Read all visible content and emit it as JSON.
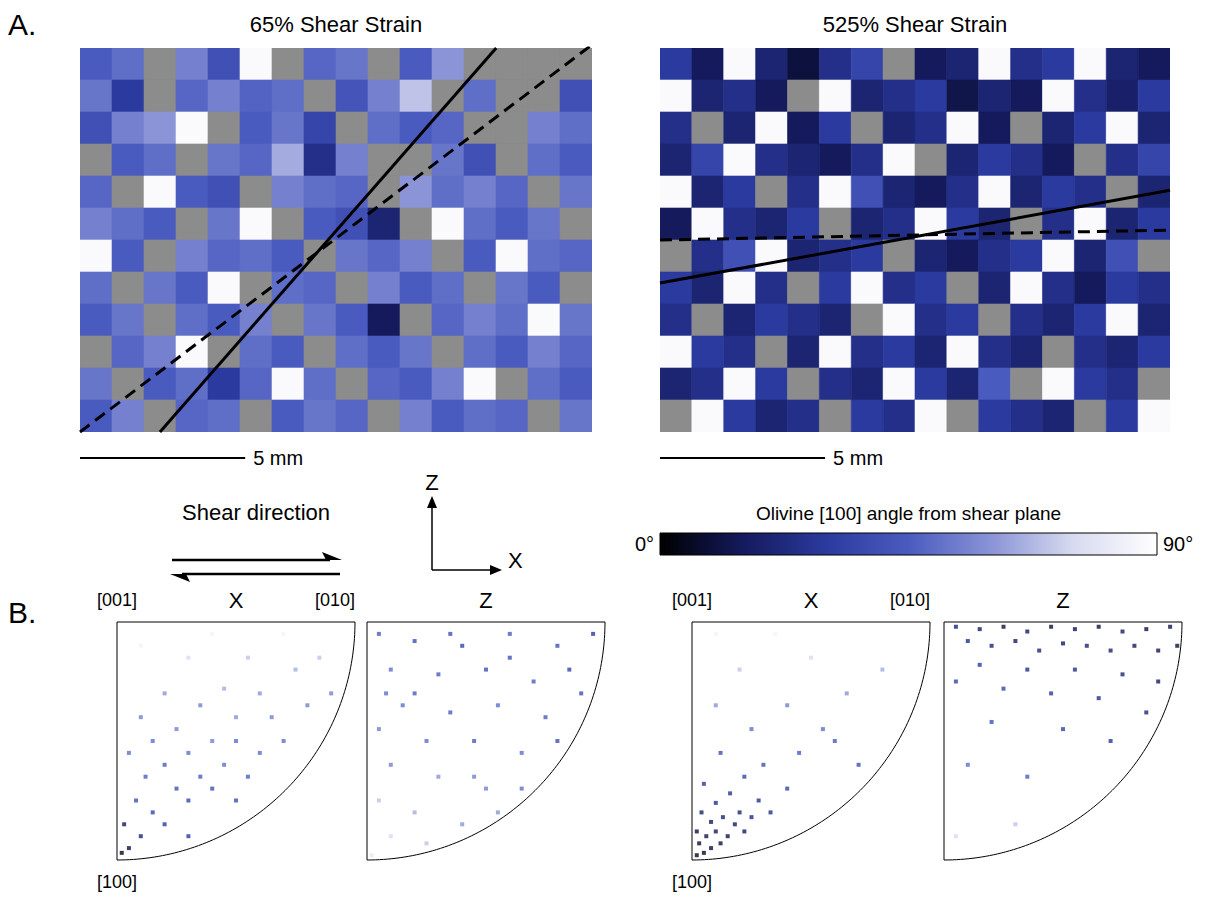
{
  "figure": {
    "panel_letters": [
      "A.",
      "B."
    ],
    "shear_direction": {
      "label": "Shear direction"
    },
    "axes_icon": {
      "labels": [
        "Z",
        "X"
      ]
    },
    "colorbar": {
      "title": "Olivine [100] angle from shear plane",
      "range": [
        0,
        90
      ],
      "ticks": [
        {
          "value": 0,
          "label": "0°"
        },
        {
          "value": 90,
          "label": "90°"
        }
      ],
      "colors": [
        "#000000",
        "#141a5c",
        "#2b3a9e",
        "#4a5bc0",
        "#8a94d6",
        "#d8dbf0",
        "#ffffff"
      ]
    }
  },
  "chart_data": [
    {
      "type": "map",
      "title": "65% Shear Strain",
      "xlim": [
        0,
        15.5
      ],
      "ylim": [
        0,
        11.6
      ],
      "tick_labels": false,
      "scale_bar": {
        "length": 5,
        "label": "5 mm"
      },
      "cells": [
        [
          45,
          50,
          null,
          55,
          40,
          88,
          null,
          48,
          52,
          null,
          45,
          60,
          null,
          null,
          null,
          null
        ],
        [
          52,
          30,
          null,
          48,
          55,
          47,
          50,
          null,
          42,
          55,
          70,
          null,
          50,
          null,
          null,
          40
        ],
        [
          40,
          55,
          60,
          88,
          null,
          45,
          52,
          35,
          null,
          50,
          45,
          48,
          null,
          null,
          55,
          50
        ],
        [
          null,
          45,
          50,
          null,
          52,
          48,
          65,
          25,
          55,
          null,
          null,
          52,
          40,
          null,
          50,
          45
        ],
        [
          48,
          null,
          88,
          45,
          40,
          null,
          55,
          50,
          48,
          null,
          60,
          50,
          55,
          48,
          null,
          52
        ],
        [
          55,
          50,
          45,
          null,
          52,
          88,
          null,
          45,
          40,
          20,
          null,
          88,
          50,
          45,
          52,
          null
        ],
        [
          88,
          45,
          null,
          55,
          48,
          50,
          45,
          null,
          52,
          48,
          55,
          null,
          45,
          88,
          50,
          48
        ],
        [
          50,
          null,
          52,
          45,
          88,
          null,
          50,
          48,
          null,
          55,
          45,
          50,
          null,
          52,
          45,
          null
        ],
        [
          45,
          52,
          null,
          50,
          45,
          55,
          null,
          52,
          45,
          15,
          null,
          48,
          55,
          50,
          88,
          52
        ],
        [
          null,
          48,
          55,
          88,
          null,
          50,
          45,
          null,
          50,
          45,
          52,
          null,
          50,
          45,
          55,
          48
        ],
        [
          52,
          null,
          45,
          50,
          30,
          48,
          88,
          50,
          null,
          48,
          45,
          55,
          88,
          null,
          50,
          45
        ],
        [
          45,
          55,
          null,
          48,
          50,
          null,
          45,
          52,
          48,
          null,
          55,
          45,
          50,
          48,
          null,
          52
        ]
      ],
      "lines": [
        {
          "line_style": "solid",
          "x": [
            2.42,
            12.6
          ],
          "y": [
            0,
            11.6
          ]
        },
        {
          "line_style": "dashed",
          "x": [
            0,
            15.5
          ],
          "y": [
            0,
            11.7
          ]
        }
      ]
    },
    {
      "type": "map",
      "title": "525% Shear Strain",
      "xlim": [
        0,
        15.45
      ],
      "ylim": [
        0,
        11.6
      ],
      "tick_labels": false,
      "scale_bar": {
        "length": 5,
        "label": "5 mm"
      },
      "cells": [
        [
          30,
          15,
          88,
          20,
          10,
          25,
          35,
          null,
          15,
          20,
          88,
          25,
          30,
          88,
          20,
          15
        ],
        [
          88,
          20,
          25,
          15,
          null,
          88,
          20,
          25,
          30,
          12,
          20,
          15,
          88,
          25,
          18,
          30
        ],
        [
          25,
          null,
          20,
          88,
          15,
          30,
          null,
          20,
          25,
          88,
          15,
          null,
          20,
          30,
          88,
          20
        ],
        [
          20,
          35,
          88,
          25,
          20,
          15,
          25,
          88,
          null,
          20,
          30,
          25,
          15,
          null,
          25,
          35
        ],
        [
          88,
          20,
          30,
          null,
          25,
          88,
          40,
          20,
          15,
          25,
          88,
          20,
          30,
          25,
          null,
          20
        ],
        [
          15,
          88,
          25,
          20,
          30,
          null,
          20,
          25,
          88,
          30,
          20,
          null,
          25,
          88,
          20,
          30
        ],
        [
          null,
          25,
          40,
          88,
          20,
          25,
          30,
          null,
          20,
          15,
          25,
          30,
          88,
          20,
          40,
          null
        ],
        [
          30,
          20,
          88,
          25,
          null,
          30,
          88,
          25,
          30,
          null,
          20,
          88,
          25,
          15,
          30,
          25
        ],
        [
          25,
          null,
          20,
          30,
          25,
          20,
          null,
          88,
          25,
          30,
          null,
          25,
          20,
          30,
          88,
          20
        ],
        [
          88,
          30,
          25,
          null,
          20,
          88,
          25,
          30,
          20,
          88,
          25,
          20,
          null,
          25,
          20,
          30
        ],
        [
          20,
          25,
          88,
          30,
          null,
          25,
          20,
          88,
          30,
          20,
          45,
          null,
          88,
          30,
          25,
          null
        ],
        [
          null,
          88,
          30,
          20,
          25,
          null,
          30,
          25,
          88,
          null,
          30,
          25,
          20,
          null,
          30,
          88
        ]
      ],
      "lines": [
        {
          "line_style": "solid",
          "x": [
            0,
            15.45
          ],
          "y": [
            4.5,
            7.3
          ]
        },
        {
          "line_style": "dashed",
          "x": [
            0,
            15.45
          ],
          "y": [
            5.8,
            6.1
          ]
        }
      ]
    },
    {
      "type": "inverse_pole_figure",
      "title": "X",
      "corner_labels": [
        "[001]",
        "[010]",
        "[100]"
      ],
      "xlim": [
        0,
        1
      ],
      "ylim": [
        0,
        1
      ],
      "tick_labels": false,
      "marker": "square",
      "points": [
        [
          0.05,
          0.95,
          10
        ],
        [
          0.1,
          0.9,
          20
        ],
        [
          0.03,
          0.85,
          15
        ],
        [
          0.15,
          0.8,
          35
        ],
        [
          0.2,
          0.85,
          30
        ],
        [
          0.08,
          0.75,
          40
        ],
        [
          0.25,
          0.7,
          40
        ],
        [
          0.3,
          0.75,
          35
        ],
        [
          0.35,
          0.65,
          45
        ],
        [
          0.12,
          0.65,
          45
        ],
        [
          0.4,
          0.7,
          40
        ],
        [
          0.45,
          0.6,
          50
        ],
        [
          0.2,
          0.6,
          45
        ],
        [
          0.3,
          0.55,
          50
        ],
        [
          0.5,
          0.5,
          50
        ],
        [
          0.55,
          0.65,
          45
        ],
        [
          0.6,
          0.55,
          50
        ],
        [
          0.4,
          0.5,
          55
        ],
        [
          0.15,
          0.5,
          50
        ],
        [
          0.25,
          0.45,
          55
        ],
        [
          0.65,
          0.4,
          55
        ],
        [
          0.7,
          0.5,
          50
        ],
        [
          0.5,
          0.4,
          60
        ],
        [
          0.35,
          0.35,
          55
        ],
        [
          0.1,
          0.4,
          55
        ],
        [
          0.6,
          0.3,
          60
        ],
        [
          0.8,
          0.35,
          55
        ],
        [
          0.45,
          0.28,
          65
        ],
        [
          0.2,
          0.3,
          60
        ],
        [
          0.75,
          0.2,
          65
        ],
        [
          0.55,
          0.15,
          70
        ],
        [
          0.3,
          0.15,
          75
        ],
        [
          0.85,
          0.15,
          70
        ],
        [
          0.1,
          0.1,
          85
        ],
        [
          0.4,
          0.05,
          85
        ],
        [
          0.7,
          0.05,
          85
        ],
        [
          0.9,
          0.3,
          55
        ],
        [
          0.05,
          0.55,
          50
        ],
        [
          0.5,
          0.75,
          40
        ],
        [
          0.3,
          0.9,
          30
        ],
        [
          0.02,
          0.97,
          5
        ]
      ]
    },
    {
      "type": "inverse_pole_figure",
      "title": "Z",
      "xlim": [
        0,
        1
      ],
      "ylim": [
        0,
        1
      ],
      "tick_labels": false,
      "marker": "square",
      "points": [
        [
          0.05,
          0.05,
          45
        ],
        [
          0.2,
          0.08,
          40
        ],
        [
          0.4,
          0.1,
          35
        ],
        [
          0.6,
          0.05,
          45
        ],
        [
          0.8,
          0.1,
          40
        ],
        [
          0.95,
          0.05,
          30
        ],
        [
          0.1,
          0.2,
          50
        ],
        [
          0.3,
          0.22,
          45
        ],
        [
          0.5,
          0.2,
          40
        ],
        [
          0.7,
          0.25,
          45
        ],
        [
          0.9,
          0.3,
          40
        ],
        [
          0.15,
          0.35,
          50
        ],
        [
          0.35,
          0.38,
          45
        ],
        [
          0.55,
          0.35,
          50
        ],
        [
          0.75,
          0.4,
          45
        ],
        [
          0.05,
          0.45,
          55
        ],
        [
          0.25,
          0.5,
          50
        ],
        [
          0.45,
          0.5,
          45
        ],
        [
          0.65,
          0.55,
          50
        ],
        [
          0.8,
          0.5,
          40
        ],
        [
          0.1,
          0.6,
          55
        ],
        [
          0.3,
          0.65,
          60
        ],
        [
          0.5,
          0.7,
          55
        ],
        [
          0.65,
          0.7,
          50
        ],
        [
          0.05,
          0.75,
          70
        ],
        [
          0.2,
          0.8,
          65
        ],
        [
          0.4,
          0.85,
          60
        ],
        [
          0.1,
          0.9,
          75
        ],
        [
          0.25,
          0.93,
          70
        ],
        [
          0.02,
          0.98,
          80
        ],
        [
          0.45,
          0.65,
          55
        ],
        [
          0.6,
          0.15,
          40
        ],
        [
          0.2,
          0.3,
          45
        ],
        [
          0.85,
          0.2,
          35
        ],
        [
          0.35,
          0.05,
          40
        ],
        [
          0.08,
          0.3,
          50
        ],
        [
          0.55,
          0.8,
          60
        ]
      ]
    },
    {
      "type": "inverse_pole_figure",
      "title": "X",
      "corner_labels": [
        "[001]",
        "[010]",
        "[100]"
      ],
      "xlim": [
        0,
        1
      ],
      "ylim": [
        0,
        1
      ],
      "tick_labels": false,
      "marker": "square",
      "points": [
        [
          0.02,
          0.98,
          5
        ],
        [
          0.05,
          0.97,
          5
        ],
        [
          0.08,
          0.95,
          10
        ],
        [
          0.03,
          0.93,
          8
        ],
        [
          0.12,
          0.93,
          10
        ],
        [
          0.06,
          0.9,
          12
        ],
        [
          0.1,
          0.88,
          15
        ],
        [
          0.15,
          0.9,
          12
        ],
        [
          0.02,
          0.88,
          10
        ],
        [
          0.18,
          0.85,
          15
        ],
        [
          0.08,
          0.84,
          15
        ],
        [
          0.13,
          0.82,
          20
        ],
        [
          0.22,
          0.88,
          15
        ],
        [
          0.04,
          0.8,
          18
        ],
        [
          0.2,
          0.8,
          20
        ],
        [
          0.25,
          0.82,
          22
        ],
        [
          0.1,
          0.76,
          25
        ],
        [
          0.28,
          0.75,
          25
        ],
        [
          0.16,
          0.72,
          28
        ],
        [
          0.33,
          0.8,
          25
        ],
        [
          0.05,
          0.68,
          30
        ],
        [
          0.22,
          0.65,
          35
        ],
        [
          0.4,
          0.7,
          35
        ],
        [
          0.3,
          0.6,
          40
        ],
        [
          0.12,
          0.55,
          40
        ],
        [
          0.45,
          0.55,
          45
        ],
        [
          0.25,
          0.45,
          50
        ],
        [
          0.55,
          0.45,
          50
        ],
        [
          0.1,
          0.35,
          60
        ],
        [
          0.4,
          0.35,
          55
        ],
        [
          0.65,
          0.3,
          60
        ],
        [
          0.2,
          0.2,
          70
        ],
        [
          0.5,
          0.15,
          75
        ],
        [
          0.8,
          0.2,
          65
        ],
        [
          0.1,
          0.05,
          85
        ],
        [
          0.35,
          0.05,
          85
        ],
        [
          0.6,
          0.5,
          45
        ],
        [
          0.7,
          0.6,
          40
        ]
      ]
    },
    {
      "type": "inverse_pole_figure",
      "title": "Z",
      "xlim": [
        0,
        1
      ],
      "ylim": [
        0,
        1
      ],
      "tick_labels": false,
      "marker": "square",
      "points": [
        [
          0.05,
          0.02,
          20
        ],
        [
          0.15,
          0.03,
          15
        ],
        [
          0.25,
          0.02,
          10
        ],
        [
          0.35,
          0.04,
          15
        ],
        [
          0.45,
          0.02,
          10
        ],
        [
          0.55,
          0.03,
          12
        ],
        [
          0.65,
          0.02,
          10
        ],
        [
          0.75,
          0.04,
          15
        ],
        [
          0.85,
          0.03,
          10
        ],
        [
          0.95,
          0.02,
          12
        ],
        [
          0.1,
          0.08,
          25
        ],
        [
          0.2,
          0.1,
          20
        ],
        [
          0.3,
          0.08,
          15
        ],
        [
          0.4,
          0.12,
          20
        ],
        [
          0.5,
          0.09,
          15
        ],
        [
          0.6,
          0.1,
          20
        ],
        [
          0.7,
          0.12,
          18
        ],
        [
          0.8,
          0.1,
          15
        ],
        [
          0.9,
          0.12,
          12
        ],
        [
          0.98,
          0.1,
          10
        ],
        [
          0.15,
          0.18,
          30
        ],
        [
          0.35,
          0.2,
          25
        ],
        [
          0.55,
          0.2,
          25
        ],
        [
          0.75,
          0.22,
          20
        ],
        [
          0.9,
          0.25,
          15
        ],
        [
          0.05,
          0.25,
          35
        ],
        [
          0.25,
          0.28,
          35
        ],
        [
          0.45,
          0.3,
          30
        ],
        [
          0.65,
          0.32,
          25
        ],
        [
          0.85,
          0.38,
          20
        ],
        [
          0.2,
          0.42,
          40
        ],
        [
          0.5,
          0.45,
          35
        ],
        [
          0.7,
          0.5,
          30
        ],
        [
          0.1,
          0.6,
          50
        ],
        [
          0.35,
          0.65,
          45
        ],
        [
          0.05,
          0.9,
          75
        ],
        [
          0.3,
          0.85,
          70
        ]
      ]
    }
  ]
}
